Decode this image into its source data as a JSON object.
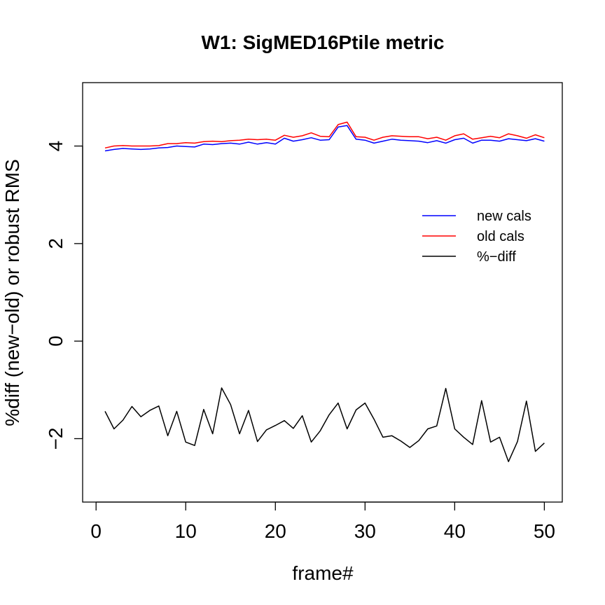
{
  "chart_data": {
    "type": "line",
    "title": "W1: SigMED16Ptile metric",
    "xlabel": "frame#",
    "ylabel": "%diff (new−old) or robust RMS",
    "xlim": [
      -1.5,
      52
    ],
    "ylim": [
      -3.3,
      5.3
    ],
    "x_ticks": [
      0,
      10,
      20,
      30,
      40,
      50
    ],
    "y_ticks": [
      -2,
      0,
      2,
      4
    ],
    "y_tick_labels": [
      "−2",
      "0",
      "2",
      "4"
    ],
    "grid": false,
    "legend_position": "right",
    "x": [
      1,
      2,
      3,
      4,
      5,
      6,
      7,
      8,
      9,
      10,
      11,
      12,
      13,
      14,
      15,
      16,
      17,
      18,
      19,
      20,
      21,
      22,
      23,
      24,
      25,
      26,
      27,
      28,
      29,
      30,
      31,
      32,
      33,
      34,
      35,
      36,
      37,
      38,
      39,
      40,
      41,
      42,
      43,
      44,
      45,
      46,
      47,
      48,
      49,
      50
    ],
    "series": [
      {
        "name": "new cals",
        "color": "#0000ff",
        "values": [
          3.9,
          3.93,
          3.95,
          3.94,
          3.93,
          3.94,
          3.96,
          3.97,
          4.0,
          3.99,
          3.98,
          4.04,
          4.03,
          4.05,
          4.06,
          4.04,
          4.08,
          4.04,
          4.07,
          4.04,
          4.16,
          4.1,
          4.13,
          4.17,
          4.12,
          4.13,
          4.39,
          4.42,
          4.14,
          4.12,
          4.06,
          4.1,
          4.14,
          4.12,
          4.11,
          4.1,
          4.07,
          4.11,
          4.06,
          4.13,
          4.16,
          4.06,
          4.12,
          4.12,
          4.1,
          4.15,
          4.13,
          4.11,
          4.15,
          4.1
        ]
      },
      {
        "name": "old cals",
        "color": "#ff0000",
        "values": [
          3.96,
          4.0,
          4.01,
          4.0,
          4.0,
          4.0,
          4.01,
          4.05,
          4.05,
          4.07,
          4.06,
          4.09,
          4.1,
          4.09,
          4.11,
          4.12,
          4.14,
          4.13,
          4.14,
          4.12,
          4.22,
          4.18,
          4.21,
          4.27,
          4.2,
          4.19,
          4.44,
          4.49,
          4.19,
          4.18,
          4.12,
          4.18,
          4.21,
          4.2,
          4.19,
          4.19,
          4.15,
          4.18,
          4.12,
          4.21,
          4.25,
          4.14,
          4.17,
          4.2,
          4.17,
          4.25,
          4.21,
          4.16,
          4.23,
          4.17
        ]
      },
      {
        "name": "%−diff",
        "color": "#000000",
        "values": [
          -1.44,
          -1.8,
          -1.62,
          -1.34,
          -1.55,
          -1.42,
          -1.33,
          -1.94,
          -1.44,
          -2.07,
          -2.14,
          -1.4,
          -1.9,
          -0.96,
          -1.3,
          -1.9,
          -1.42,
          -2.06,
          -1.82,
          -1.73,
          -1.63,
          -1.79,
          -1.53,
          -2.07,
          -1.84,
          -1.51,
          -1.27,
          -1.8,
          -1.41,
          -1.27,
          -1.6,
          -1.97,
          -1.94,
          -2.05,
          -2.18,
          -2.04,
          -1.8,
          -1.74,
          -0.97,
          -1.8,
          -1.97,
          -2.12,
          -1.22,
          -2.07,
          -1.97,
          -2.47,
          -2.06,
          -1.23,
          -2.26,
          -2.09
        ]
      }
    ]
  }
}
